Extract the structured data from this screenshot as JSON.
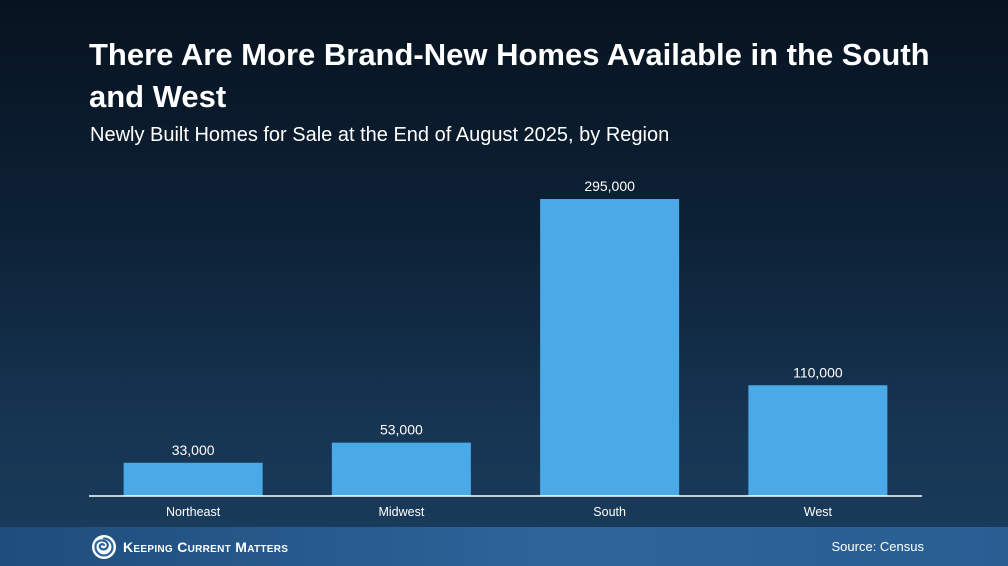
{
  "chart_data": {
    "type": "bar",
    "title": "There Are More Brand-New Homes Available in the South and West",
    "subtitle": "Newly Built Homes for Sale at the End of August 2025, by Region",
    "categories": [
      "Northeast",
      "Midwest",
      "South",
      "West"
    ],
    "values": [
      33000,
      53000,
      295000,
      110000
    ],
    "data_labels": [
      "33,000",
      "53,000",
      "295,000",
      "110,000"
    ],
    "xlabel": "",
    "ylabel": "",
    "ylim": [
      0,
      300000
    ],
    "grid": false,
    "legend": "none",
    "bar_color": "#4aaae8",
    "axis_color": "#ffffff"
  },
  "footer": {
    "brand": "Keeping Current Matters",
    "source": "Source: Census"
  }
}
